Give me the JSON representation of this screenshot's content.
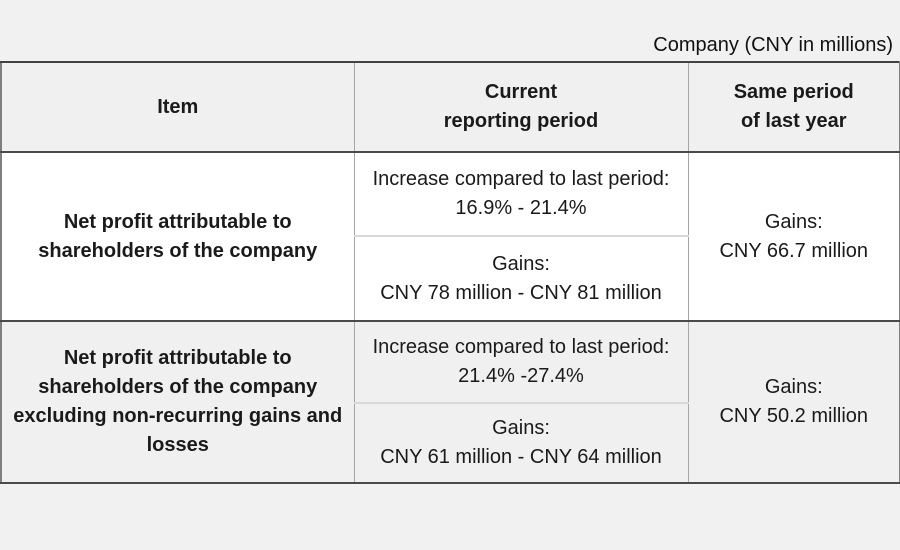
{
  "page_title": "Company (CNY in millions)",
  "table": {
    "columns": {
      "item": "Item",
      "current": "Current\nreporting period",
      "same_period": "Same period\nof last year"
    },
    "rows": [
      {
        "item": "Net profit attributable to shareholders of the company",
        "increase": "Increase compared to last period:\n16.9% - 21.4%",
        "gains": "Gains:\nCNY 78 million - CNY 81 million",
        "last_year": "Gains:\nCNY 66.7 million"
      },
      {
        "item": "Net profit attributable to shareholders of the company excluding non-recurring gains and losses",
        "increase": "Increase compared to last period:\n21.4% -27.4%",
        "gains": "Gains:\nCNY 61 million - CNY 64 million",
        "last_year": "Gains:\nCNY 50.2 million"
      }
    ]
  },
  "colors": {
    "page_bg": "#f1f1f1",
    "row_white_bg": "#ffffff",
    "row_gray_bg": "#f0f0f0",
    "border_dark": "#4a4a4a",
    "border_outer_side": "#7f7f7f",
    "column_divider": "#a6a6a6",
    "sub_divider": "#d9d9d9",
    "text": "#1a1a1a"
  }
}
